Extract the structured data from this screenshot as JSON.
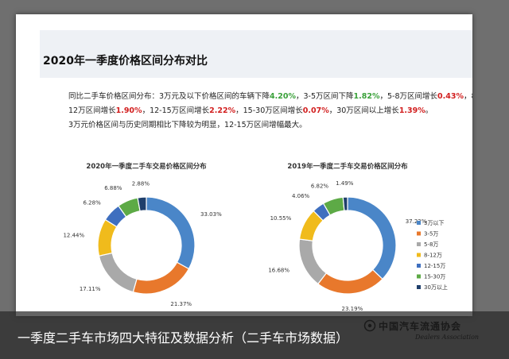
{
  "slide": {
    "title": "2020年一季度价格区间分布对比",
    "summary": {
      "intro": "同比二手车价格区间分布：3万元及以下价格区间的车辆下降",
      "v1": "4.20%",
      "t2": "，3-5万区间下降",
      "v2": "1.82%",
      "t3": "，5-8万区间增长",
      "v3": "0.43%",
      "t4": "，8-12万区间增长",
      "v4": "1.90%",
      "t5": "，12-15万区间增长",
      "v5": "2.22%",
      "t6": "，15-30万区间增长",
      "v6": "0.07%",
      "t7": "，30万区间以上增长",
      "v7": "1.39%",
      "t8": "。",
      "line2": "3万元价格区间与历史同期相比下降较为明显，12-15万区间增幅最大。"
    }
  },
  "colors": {
    "slice": [
      "#4a86c8",
      "#e8782c",
      "#a9a9a9",
      "#f0bb1c",
      "#3f6fbf",
      "#5daa46",
      "#1f3f6b"
    ],
    "green_text": "#3aa13a",
    "red_text": "#d21f1f"
  },
  "chart_data": [
    {
      "type": "pie",
      "variant": "donut",
      "title": "2020年一季度二手车交易价格区间分布",
      "categories": [
        "3万以下",
        "3-5万",
        "5-8万",
        "8-12万",
        "12-15万",
        "15-30万",
        "30万以上"
      ],
      "values": [
        33.03,
        21.37,
        17.11,
        12.44,
        6.28,
        6.88,
        2.88
      ],
      "labels": [
        "33.03%",
        "21.37%",
        "17.11%",
        "12.44%",
        "6.28%",
        "6.88%",
        "2.88%"
      ]
    },
    {
      "type": "pie",
      "variant": "donut",
      "title": "2019年一季度二手车交易价格区间分布",
      "categories": [
        "3万以下",
        "3-5万",
        "5-8万",
        "8-12万",
        "12-15万",
        "15-30万",
        "30万以上"
      ],
      "values": [
        37.22,
        23.19,
        16.68,
        10.55,
        4.06,
        6.82,
        1.49
      ],
      "labels": [
        "37.22%",
        "23.19%",
        "16.68%",
        "10.55%",
        "4.06%",
        "6.82%",
        "1.49%"
      ],
      "legend_position": "right"
    }
  ],
  "footer": {
    "caption": "一季度二手车市场四大特征及数据分析（二手车市场数据）",
    "watermark_cn": "中国汽车流通协会",
    "watermark_en": "Dealers Association"
  }
}
